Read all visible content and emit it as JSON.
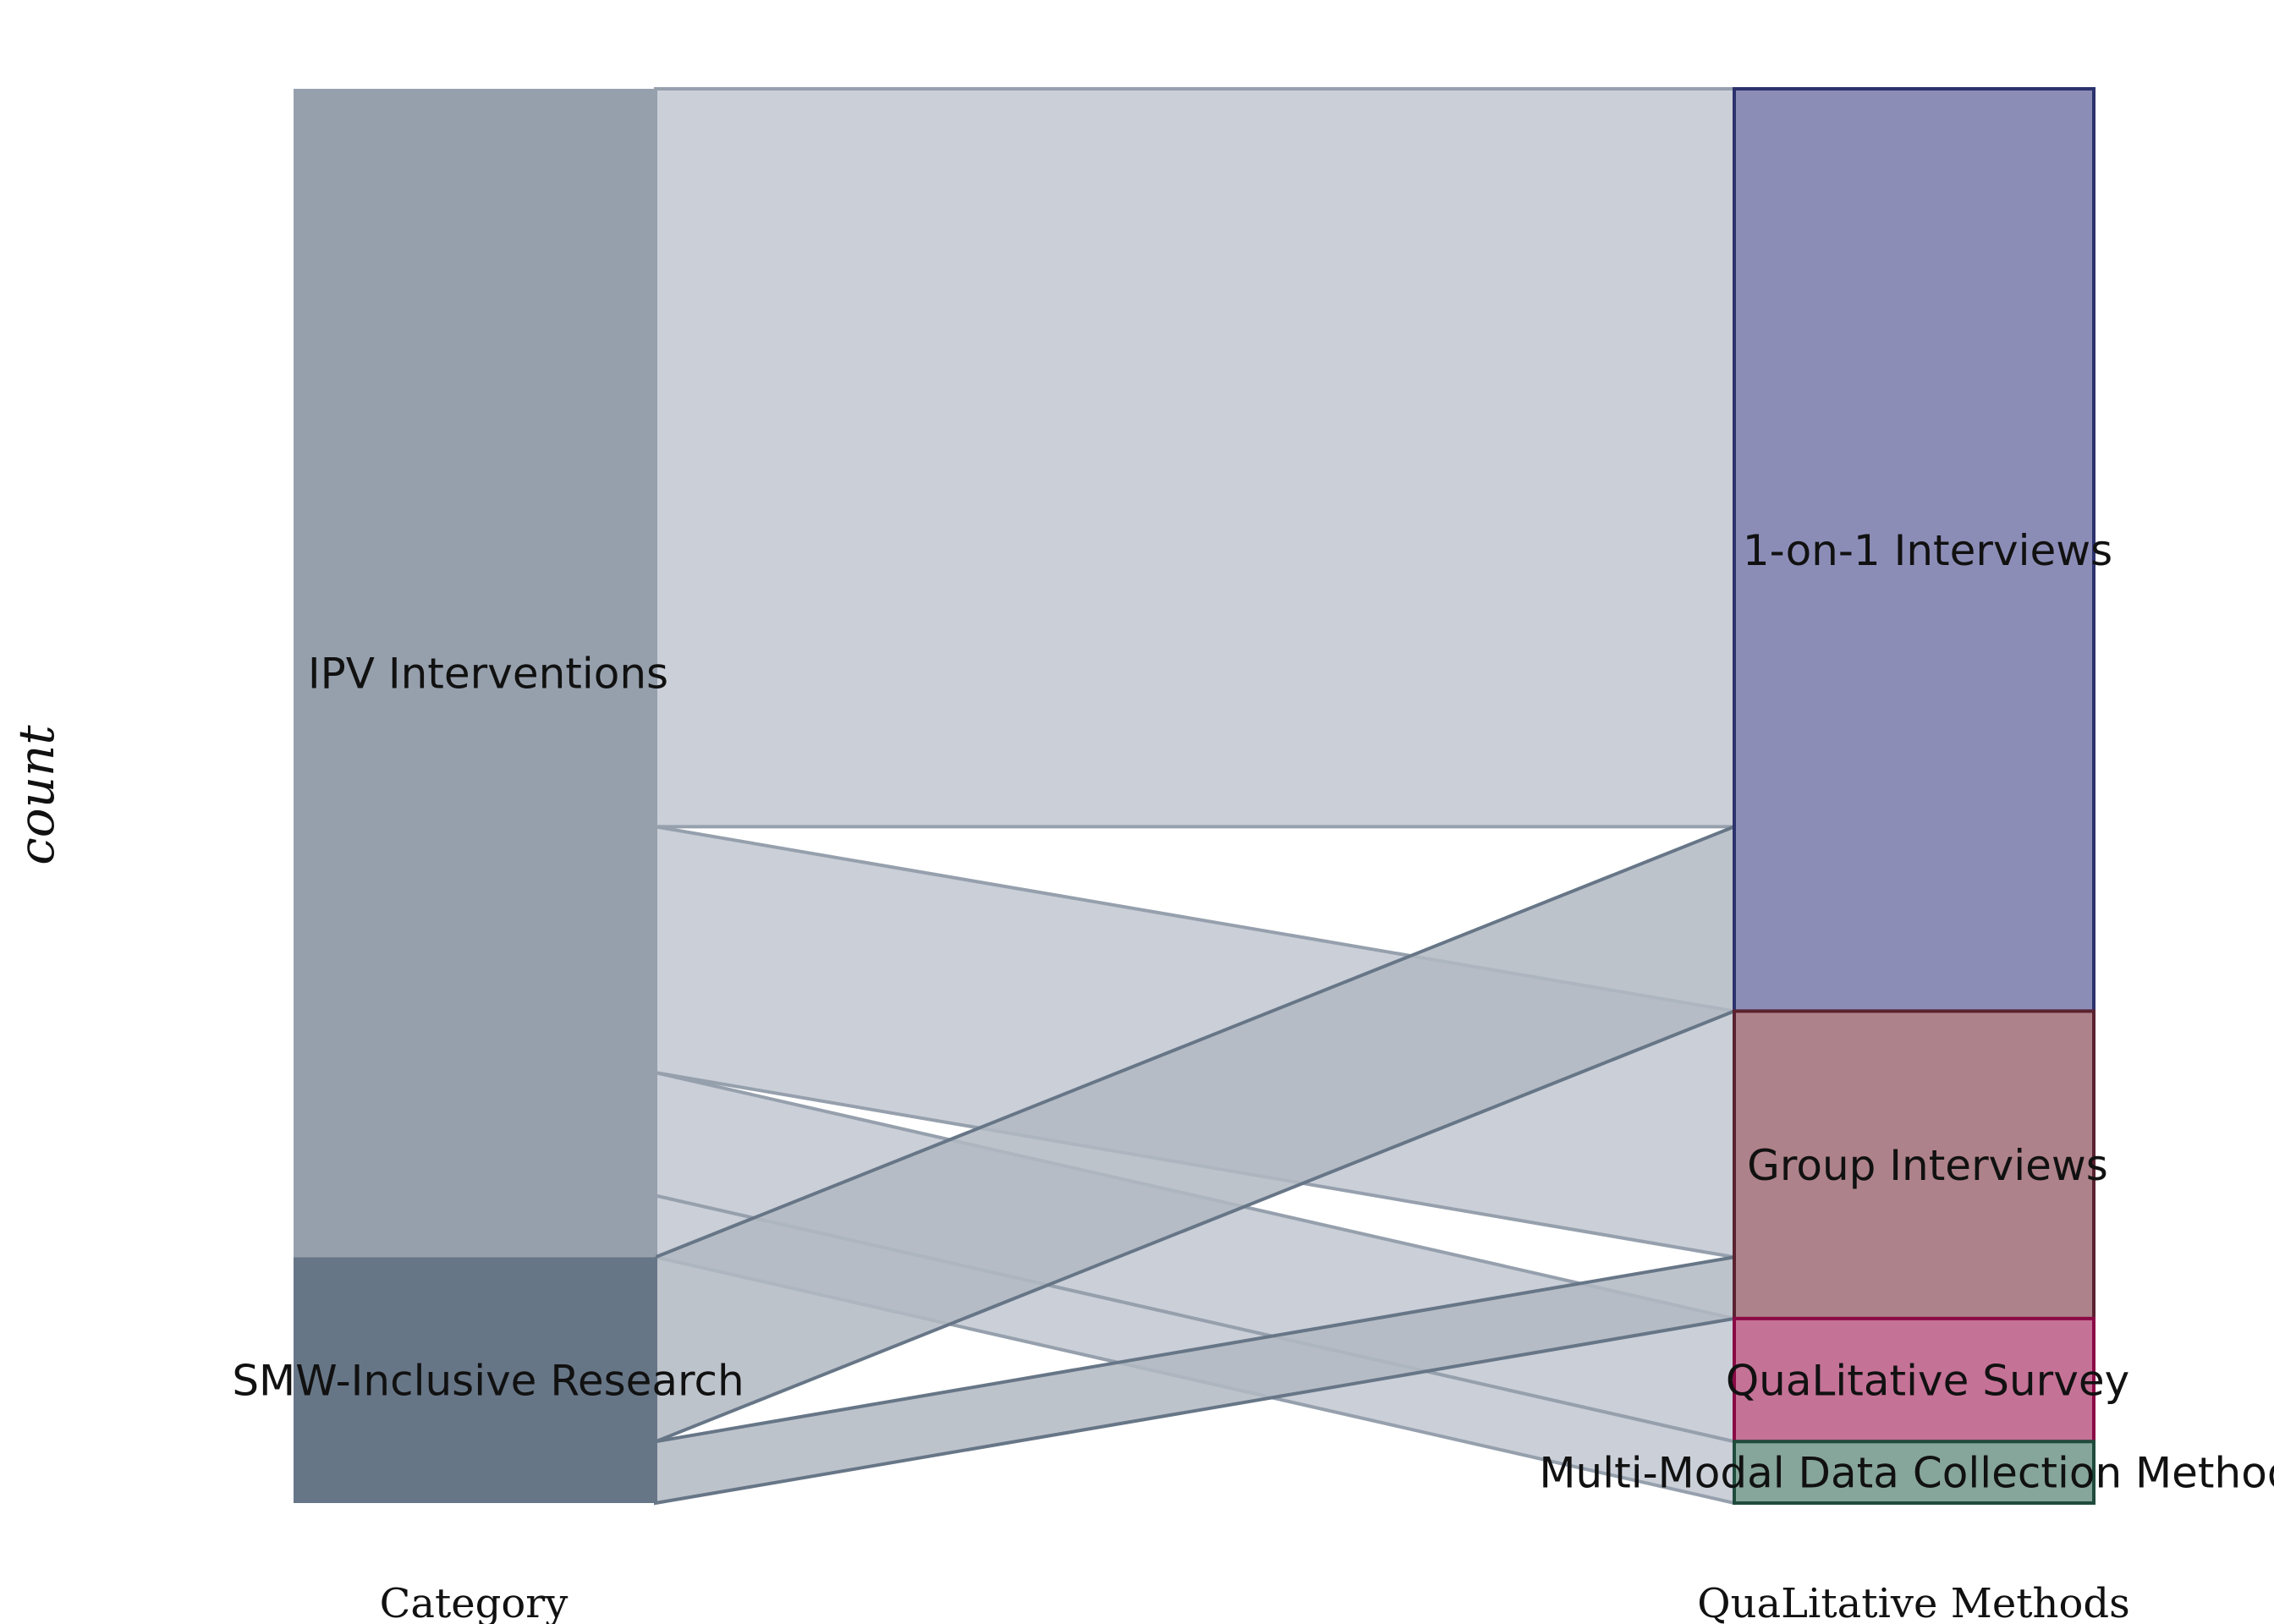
{
  "chart_data": {
    "type": "alluvial",
    "ylabel": "count",
    "axes": [
      {
        "label": "Category",
        "strata": [
          "IPV Interventions",
          "SMW-Inclusive Research"
        ]
      },
      {
        "label": "QuaLitative Methods",
        "strata": [
          "1-on-1 Interviews",
          "Group Interviews",
          "QuaLitative Survey",
          "Multi-Modal Data Collection Methods"
        ]
      }
    ],
    "flows": [
      {
        "from": "IPV Interventions",
        "to": "1-on-1 Interviews",
        "value": 12
      },
      {
        "from": "IPV Interventions",
        "to": "Group Interviews",
        "value": 4
      },
      {
        "from": "IPV Interventions",
        "to": "QuaLitative Survey",
        "value": 2
      },
      {
        "from": "IPV Interventions",
        "to": "Multi-Modal Data Collection Methods",
        "value": 1
      },
      {
        "from": "SMW-Inclusive Research",
        "to": "1-on-1 Interviews",
        "value": 3
      },
      {
        "from": "SMW-Inclusive Research",
        "to": "Group Interviews",
        "value": 1
      },
      {
        "from": "SMW-Inclusive Research",
        "to": "QuaLitative Survey",
        "value": 0
      },
      {
        "from": "SMW-Inclusive Research",
        "to": "Multi-Modal Data Collection Methods",
        "value": 0
      }
    ],
    "colors": {
      "IPV Interventions": "#96a0ad",
      "SMW-Inclusive Research": "#677687",
      "flow_ipv": "#cacfd8",
      "flow_smw": "#b2b9c2",
      "1-on-1 Interviews": "#8c8db7",
      "Group Interviews": "#ae828a",
      "QuaLitative Survey": "#c57297",
      "Multi-Modal Data Collection Methods": "#86a59b",
      "border_1-on-1 Interviews": "#2c326c",
      "border_Group Interviews": "#5a2230",
      "border_QuaLitative Survey": "#8a0a45",
      "border_Multi-Modal Data Collection Methods": "#1f4b3c"
    }
  }
}
